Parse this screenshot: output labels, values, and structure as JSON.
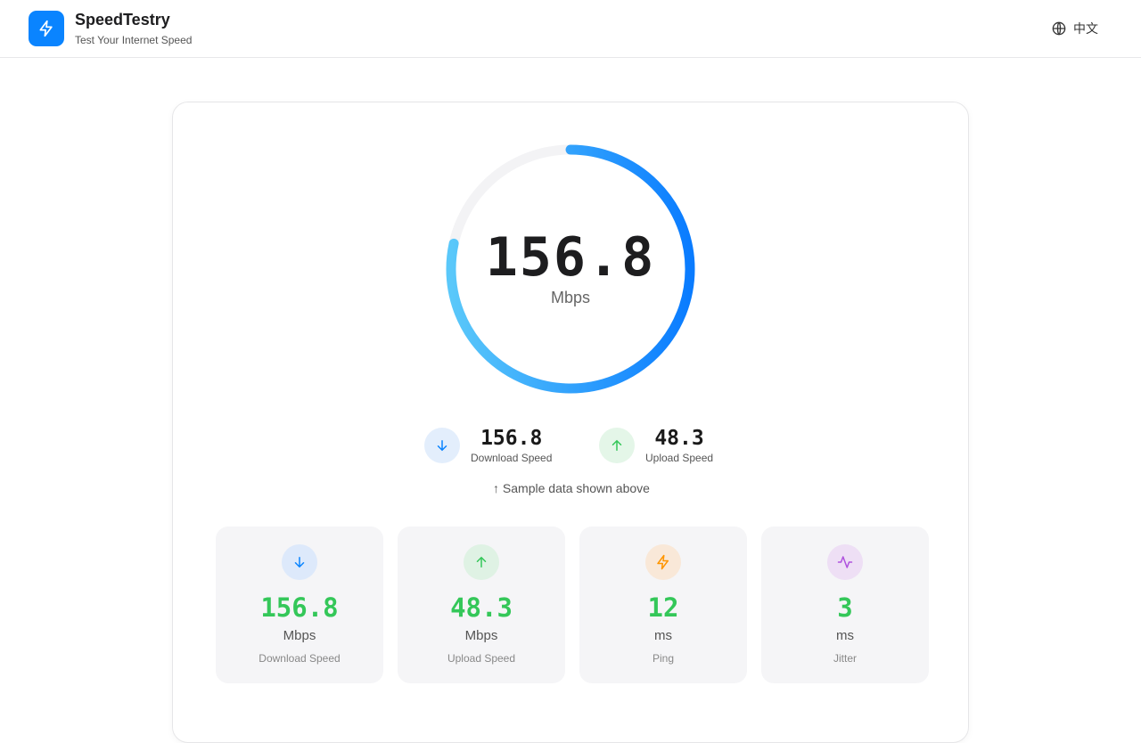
{
  "header": {
    "title": "SpeedTestry",
    "subtitle": "Test Your Internet Speed",
    "language": "中文",
    "logo_icon": "lightning-icon",
    "accent": "#0a84ff"
  },
  "gauge": {
    "value": "156.8",
    "unit": "Mbps",
    "progress": 0.784
  },
  "summary": [
    {
      "value": "156.8",
      "label": "Download Speed",
      "icon": "arrow-down-icon",
      "color": "#0a84ff"
    },
    {
      "value": "48.3",
      "label": "Upload Speed",
      "icon": "arrow-up-icon",
      "color": "#34c759"
    }
  ],
  "note": "↑ Sample data shown above",
  "stats": [
    {
      "value": "156.8",
      "unit": "Mbps",
      "label": "Download Speed",
      "icon": "arrow-down-icon",
      "color": "#0a84ff",
      "bg": "#dde9fb"
    },
    {
      "value": "48.3",
      "unit": "Mbps",
      "label": "Upload Speed",
      "icon": "arrow-up-icon",
      "color": "#34c759",
      "bg": "#dff2e4"
    },
    {
      "value": "12",
      "unit": "ms",
      "label": "Ping",
      "icon": "lightning-icon",
      "color": "#ff9500",
      "bg": "#f9e8d8"
    },
    {
      "value": "3",
      "unit": "ms",
      "label": "Jitter",
      "icon": "activity-icon",
      "color": "#af52de",
      "bg": "#eedff5"
    }
  ]
}
